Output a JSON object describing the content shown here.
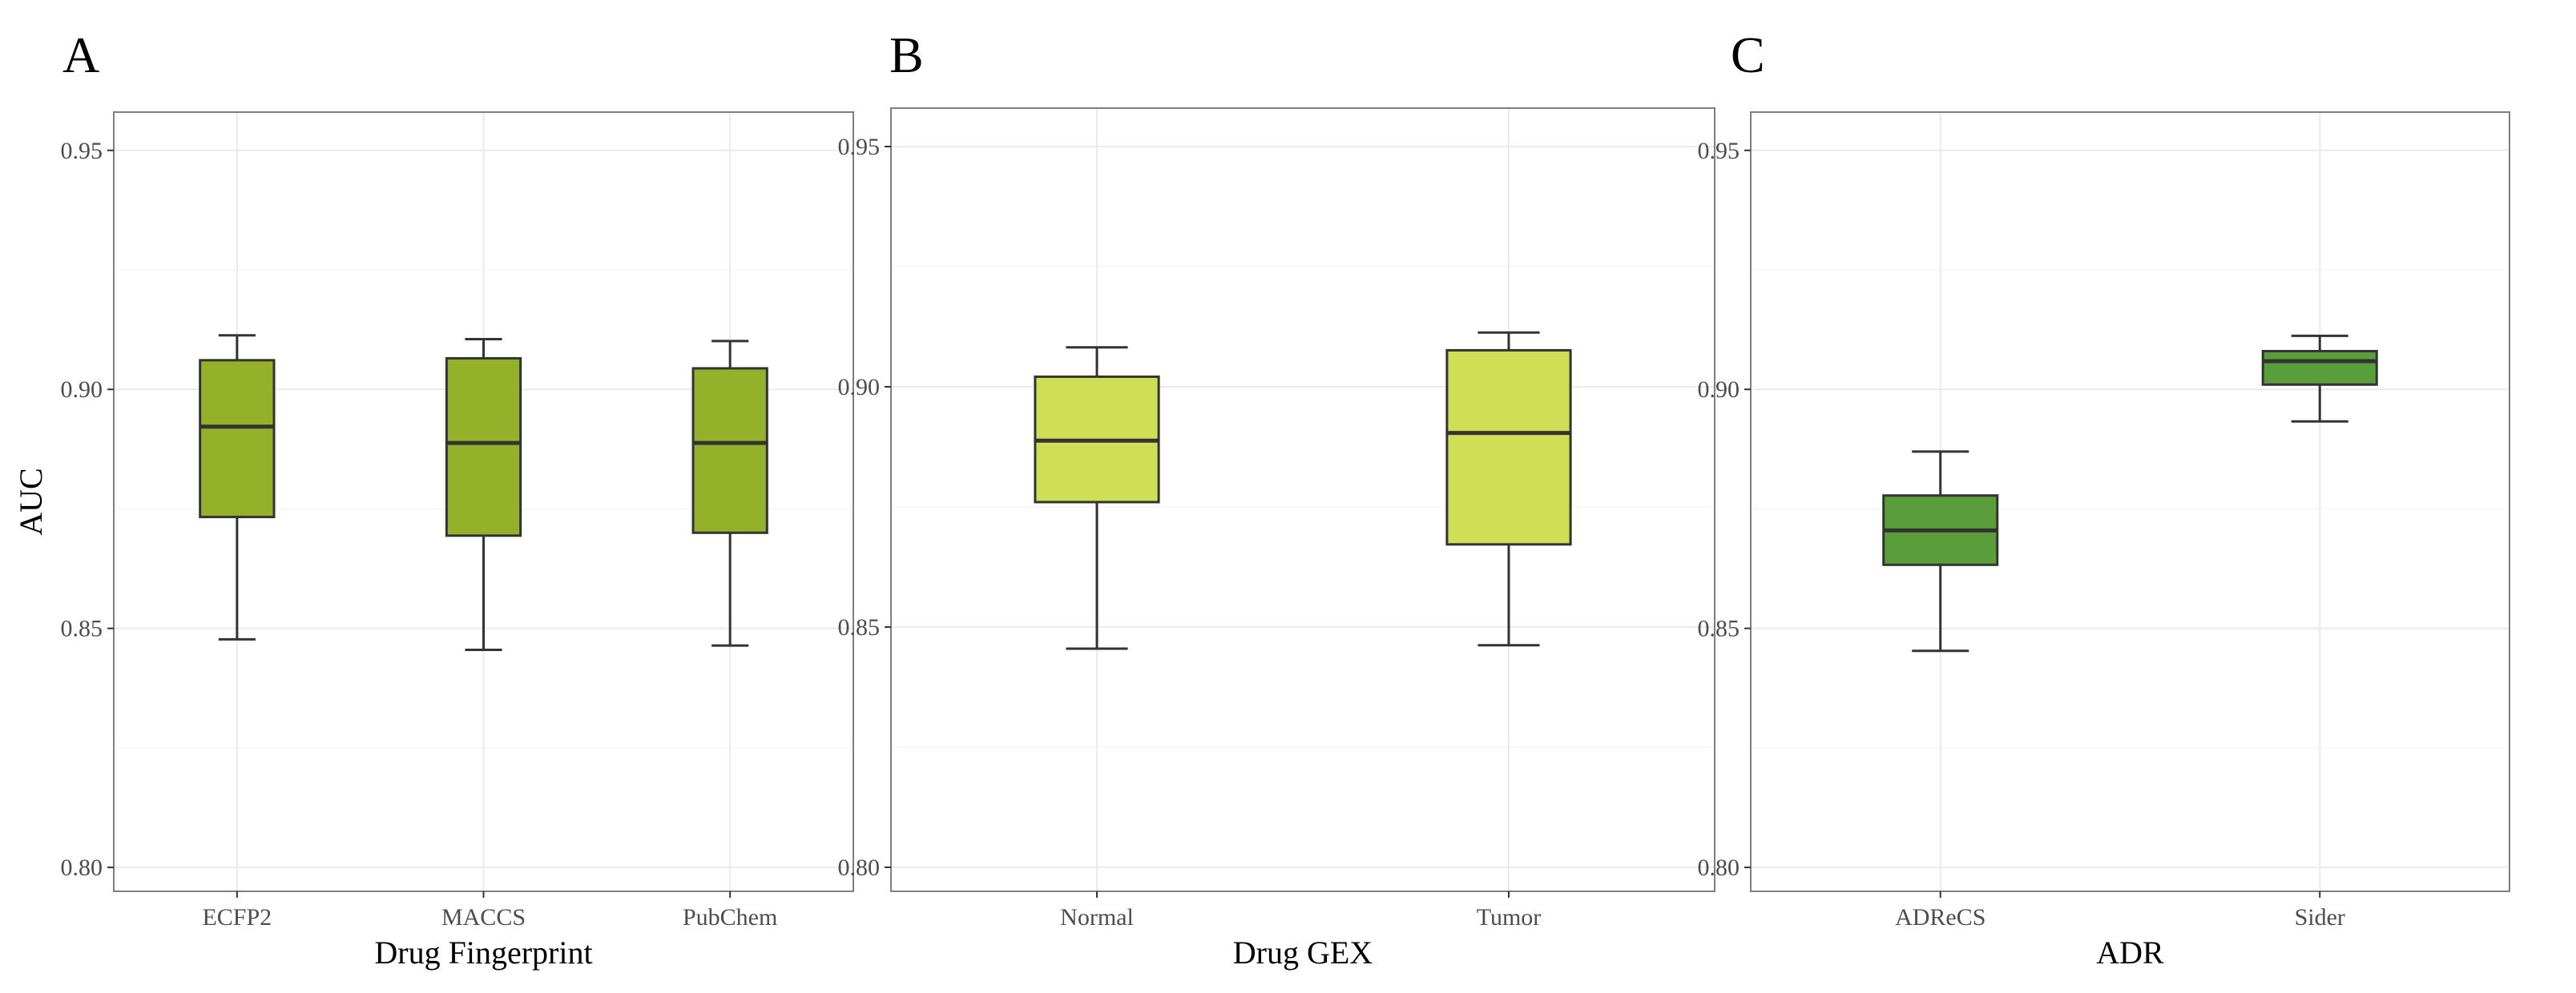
{
  "chart_data": [
    {
      "type": "boxplot",
      "panel_label": "A",
      "title": "",
      "xlabel": "Drug Fingerprint",
      "ylabel": "AUC",
      "ylim": [
        0.795,
        0.958
      ],
      "yticks": [
        0.8,
        0.85,
        0.9,
        0.95
      ],
      "ytick_labels": [
        "0.80",
        "0.85",
        "0.90",
        "0.95"
      ],
      "grid": true,
      "fill_color": "#95b12a",
      "categories": [
        "ECFP2",
        "MACCS",
        "PubChem"
      ],
      "boxes": [
        {
          "min": 0.8477,
          "q1": 0.8733,
          "median": 0.8922,
          "q3": 0.9061,
          "max": 0.9113
        },
        {
          "min": 0.8455,
          "q1": 0.8694,
          "median": 0.8888,
          "q3": 0.9065,
          "max": 0.9105
        },
        {
          "min": 0.8464,
          "q1": 0.87,
          "median": 0.8888,
          "q3": 0.9044,
          "max": 0.9101
        }
      ]
    },
    {
      "type": "boxplot",
      "panel_label": "B",
      "title": "",
      "xlabel": "Drug GEX",
      "ylabel": "",
      "ylim": [
        0.795,
        0.958
      ],
      "yticks": [
        0.8,
        0.85,
        0.9,
        0.95
      ],
      "ytick_labels": [
        "0.80",
        "0.85",
        "0.90",
        "0.95"
      ],
      "grid": true,
      "fill_color": "#cfdf55",
      "categories": [
        "Normal",
        "Tumor"
      ],
      "boxes": [
        {
          "min": 0.8455,
          "q1": 0.876,
          "median": 0.8888,
          "q3": 0.9021,
          "max": 0.9082
        },
        {
          "min": 0.8462,
          "q1": 0.8672,
          "median": 0.8904,
          "q3": 0.9076,
          "max": 0.9113
        }
      ]
    },
    {
      "type": "boxplot",
      "panel_label": "C",
      "title": "",
      "xlabel": "ADR",
      "ylabel": "",
      "ylim": [
        0.795,
        0.958
      ],
      "yticks": [
        0.8,
        0.85,
        0.9,
        0.95
      ],
      "ytick_labels": [
        "0.80",
        "0.85",
        "0.90",
        "0.95"
      ],
      "grid": true,
      "fill_color": "#5a9e3c",
      "categories": [
        "ADReCS",
        "Sider"
      ],
      "boxes": [
        {
          "min": 0.8453,
          "q1": 0.8633,
          "median": 0.8705,
          "q3": 0.8778,
          "max": 0.887
        },
        {
          "min": 0.8933,
          "q1": 0.901,
          "median": 0.9059,
          "q3": 0.908,
          "max": 0.9112
        }
      ]
    }
  ]
}
